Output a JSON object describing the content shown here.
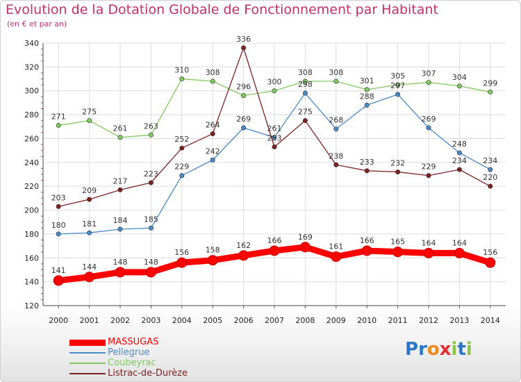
{
  "chart_data": {
    "type": "line",
    "title": "Evolution de la Dotation Globale de Fonctionnement par Habitant",
    "subtitle": "(en € et par an)",
    "x": [
      "2000",
      "2001",
      "2002",
      "2003",
      "2004",
      "2005",
      "2006",
      "2007",
      "2008",
      "2009",
      "2010",
      "2011",
      "2012",
      "2013",
      "2014"
    ],
    "ylim": [
      120,
      340
    ],
    "yticks": [
      120,
      140,
      160,
      180,
      200,
      220,
      240,
      260,
      280,
      300,
      320,
      340
    ],
    "grid": true,
    "legend_position": "bottom-left",
    "series": [
      {
        "name": "MASSUGAS",
        "color": "#ff0000",
        "values": [
          141,
          144,
          148,
          148,
          156,
          158,
          162,
          166,
          169,
          161,
          166,
          165,
          164,
          164,
          156
        ]
      },
      {
        "name": "Pellegrue",
        "color": "#4a8ac4",
        "values": [
          180,
          181,
          184,
          185,
          229,
          242,
          269,
          261,
          298,
          268,
          288,
          297,
          269,
          248,
          234
        ]
      },
      {
        "name": "Coubeyrac",
        "color": "#80c860",
        "values": [
          271,
          275,
          261,
          263,
          310,
          308,
          296,
          300,
          308,
          308,
          301,
          305,
          307,
          304,
          299
        ]
      },
      {
        "name": "Listrac-de-Durèze",
        "color": "#7a2222",
        "values": [
          203,
          209,
          217,
          223,
          252,
          264,
          336,
          253,
          275,
          238,
          233,
          232,
          229,
          234,
          220
        ]
      }
    ]
  },
  "logo": {
    "text": "Proxiti",
    "letters": [
      "P",
      "r",
      "o",
      "x",
      "i",
      "t",
      "i"
    ],
    "colors": [
      "#2b78c8",
      "#2b78c8",
      "#f08a1c",
      "#e03030",
      "#8cc640",
      "#2b78c8",
      "#8cc640"
    ]
  }
}
